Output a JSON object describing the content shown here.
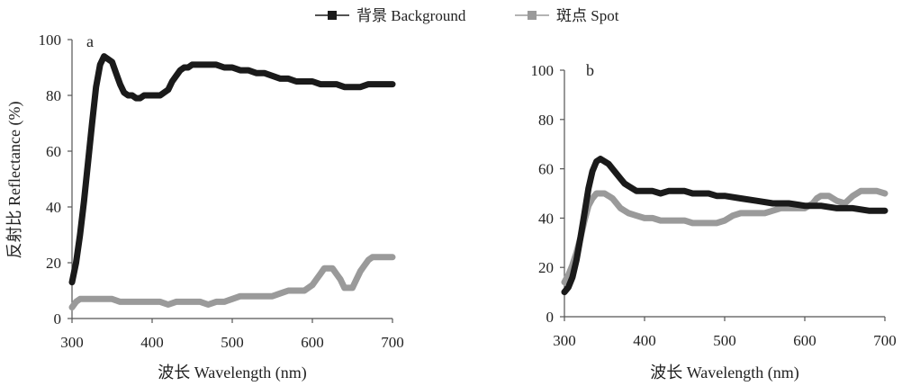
{
  "legend": {
    "background_label": "背景 Background",
    "spot_label": "斑点 Spot"
  },
  "colors": {
    "background": "#1a1a1a",
    "spot": "#9a9a9a",
    "axis": "#555555"
  },
  "ylabel": "反射比 Reflectance (%)",
  "chart_data": [
    {
      "type": "line",
      "panel_label": "a",
      "xlabel": "波长 Wavelength (nm)",
      "ylabel": "反射比 Reflectance (%)",
      "xlim": [
        300,
        700
      ],
      "ylim": [
        0,
        100
      ],
      "xticks": [
        300,
        400,
        500,
        600,
        700
      ],
      "yticks": [
        0,
        20,
        40,
        60,
        80,
        100
      ],
      "grid": false,
      "legend_position": "top-center",
      "series": [
        {
          "name": "背景 Background",
          "x": [
            300,
            305,
            310,
            315,
            320,
            325,
            330,
            335,
            340,
            345,
            350,
            355,
            360,
            365,
            370,
            375,
            380,
            385,
            390,
            395,
            400,
            405,
            410,
            415,
            420,
            425,
            430,
            435,
            440,
            445,
            450,
            460,
            470,
            480,
            490,
            500,
            510,
            520,
            530,
            540,
            550,
            560,
            570,
            580,
            590,
            600,
            610,
            620,
            630,
            640,
            650,
            660,
            670,
            680,
            690,
            700
          ],
          "y": [
            13,
            20,
            30,
            42,
            56,
            70,
            83,
            91,
            94,
            93,
            92,
            88,
            84,
            81,
            80,
            80,
            79,
            79,
            80,
            80,
            80,
            80,
            80,
            81,
            82,
            85,
            87,
            89,
            90,
            90,
            91,
            91,
            91,
            91,
            90,
            90,
            89,
            89,
            88,
            88,
            87,
            86,
            86,
            85,
            85,
            85,
            84,
            84,
            84,
            83,
            83,
            83,
            84,
            84,
            84,
            84
          ]
        },
        {
          "name": "斑点 Spot",
          "x": [
            300,
            305,
            310,
            320,
            330,
            340,
            350,
            360,
            370,
            380,
            390,
            400,
            410,
            420,
            430,
            440,
            450,
            460,
            470,
            480,
            490,
            500,
            510,
            520,
            530,
            540,
            550,
            560,
            570,
            580,
            590,
            600,
            605,
            610,
            615,
            620,
            625,
            630,
            635,
            640,
            645,
            650,
            655,
            660,
            665,
            670,
            675,
            680,
            690,
            700
          ],
          "y": [
            4,
            6,
            7,
            7,
            7,
            7,
            7,
            6,
            6,
            6,
            6,
            6,
            6,
            5,
            6,
            6,
            6,
            6,
            5,
            6,
            6,
            7,
            8,
            8,
            8,
            8,
            8,
            9,
            10,
            10,
            10,
            12,
            14,
            16,
            18,
            18,
            18,
            16,
            14,
            11,
            11,
            11,
            14,
            17,
            19,
            21,
            22,
            22,
            22,
            22
          ]
        }
      ]
    },
    {
      "type": "line",
      "panel_label": "b",
      "xlabel": "波长 Wavelength (nm)",
      "xlim": [
        300,
        700
      ],
      "ylim": [
        0,
        100
      ],
      "xticks": [
        300,
        400,
        500,
        600,
        700
      ],
      "yticks": [
        0,
        20,
        40,
        60,
        80,
        100
      ],
      "grid": false,
      "series": [
        {
          "name": "背景 Background",
          "x": [
            300,
            305,
            310,
            315,
            320,
            325,
            330,
            335,
            340,
            345,
            350,
            355,
            360,
            365,
            370,
            375,
            380,
            390,
            400,
            410,
            420,
            430,
            440,
            450,
            460,
            470,
            480,
            490,
            500,
            520,
            540,
            560,
            580,
            600,
            620,
            640,
            660,
            680,
            700
          ],
          "y": [
            10,
            12,
            16,
            23,
            32,
            42,
            52,
            59,
            63,
            64,
            63,
            62,
            60,
            58,
            56,
            54,
            53,
            51,
            51,
            51,
            50,
            51,
            51,
            51,
            50,
            50,
            50,
            49,
            49,
            48,
            47,
            46,
            46,
            45,
            45,
            44,
            44,
            43,
            43
          ]
        },
        {
          "name": "斑点 Spot",
          "x": [
            300,
            305,
            310,
            315,
            320,
            325,
            330,
            335,
            340,
            345,
            350,
            355,
            360,
            365,
            370,
            375,
            380,
            390,
            400,
            410,
            420,
            430,
            440,
            450,
            460,
            470,
            480,
            490,
            500,
            510,
            520,
            530,
            540,
            550,
            560,
            570,
            580,
            590,
            600,
            610,
            615,
            620,
            625,
            630,
            640,
            650,
            660,
            670,
            680,
            690,
            700
          ],
          "y": [
            14,
            17,
            21,
            26,
            32,
            39,
            45,
            48,
            50,
            50,
            50,
            49,
            48,
            46,
            44,
            43,
            42,
            41,
            40,
            40,
            39,
            39,
            39,
            39,
            38,
            38,
            38,
            38,
            39,
            41,
            42,
            42,
            42,
            42,
            43,
            44,
            44,
            44,
            44,
            46,
            48,
            49,
            49,
            49,
            47,
            46,
            49,
            51,
            51,
            51,
            50
          ]
        }
      ]
    }
  ]
}
